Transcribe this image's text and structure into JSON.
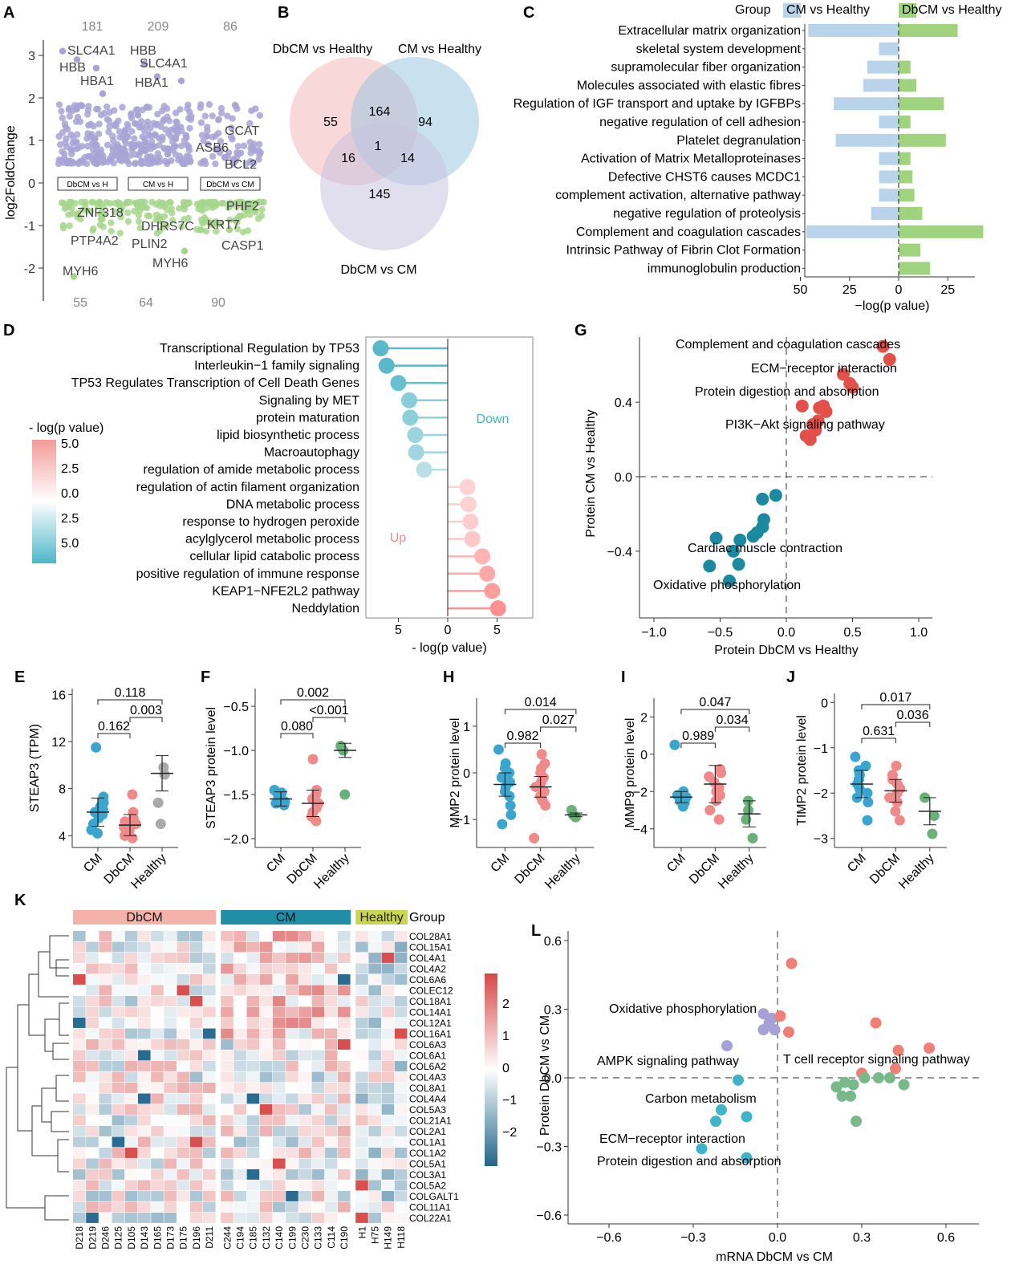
{
  "panels": {
    "A": "A",
    "B": "B",
    "C": "C",
    "D": "D",
    "E": "E",
    "F": "F",
    "G": "G",
    "H": "H",
    "I": "I",
    "J": "J",
    "K": "K",
    "L": "L"
  },
  "chart_data": [
    {
      "panel": "A",
      "type": "scatter",
      "ylabel": "log2FoldChange",
      "ylim": [
        -2.5,
        3.3
      ],
      "yticks": [
        3,
        2,
        1,
        0,
        -1,
        -2
      ],
      "up_counts": [
        "181",
        "209",
        "86"
      ],
      "down_counts": [
        "55",
        "64",
        "90"
      ],
      "groups": [
        "DbCM vs H",
        "CM vs H",
        "DbCM vs CM"
      ],
      "up_color": "#a9a3d6",
      "down_color": "#a6d68c",
      "labels": [
        {
          "text": "SLC4A1",
          "group": 0,
          "y": 3.0
        },
        {
          "text": "HBB",
          "group": 0,
          "y": 2.7
        },
        {
          "text": "HBA1",
          "group": 0,
          "y": 2.4
        },
        {
          "text": "HBB",
          "group": 1,
          "y": 3.0
        },
        {
          "text": "SLC4A1",
          "group": 1,
          "y": 2.8
        },
        {
          "text": "HBA1",
          "group": 1,
          "y": 2.4
        },
        {
          "text": "GCAT",
          "group": 2,
          "y": 1.2
        },
        {
          "text": "ASB6",
          "group": 2,
          "y": 0.8
        },
        {
          "text": "BCL2",
          "group": 2,
          "y": 0.4
        },
        {
          "text": "ZNF318",
          "group": 0,
          "y": -0.7
        },
        {
          "text": "PTP4A2",
          "group": 0,
          "y": -1.3
        },
        {
          "text": "MYH6",
          "group": 0,
          "y": -2.0
        },
        {
          "text": "DHRS7C",
          "group": 1,
          "y": -1.0
        },
        {
          "text": "PLIN2",
          "group": 1,
          "y": -1.4
        },
        {
          "text": "MYH6",
          "group": 1,
          "y": -1.8
        },
        {
          "text": "PHF2",
          "group": 2,
          "y": -0.6
        },
        {
          "text": "KRT7",
          "group": 2,
          "y": -1.0
        },
        {
          "text": "CASP1",
          "group": 2,
          "y": -1.4
        }
      ]
    },
    {
      "panel": "B",
      "type": "venn",
      "sets": [
        "DbCM vs Healthy",
        "CM vs Healthy",
        "DbCM vs CM"
      ],
      "colors": [
        "#f2b8b8",
        "#9dc6e2",
        "#c8c2e0"
      ],
      "regions": {
        "a_only": "55",
        "ab": "164",
        "b_only": "94",
        "abc": "1",
        "ac": "16",
        "bc": "14",
        "c_only": "145"
      }
    },
    {
      "panel": "C",
      "type": "bar",
      "legend_title": "Group",
      "series": [
        {
          "name": "CM vs Healthy",
          "color": "#b9d3ea",
          "values": [
            46,
            10,
            16,
            18,
            33,
            10,
            32,
            10,
            10,
            10,
            14,
            47,
            0,
            0
          ]
        },
        {
          "name": "DbCM vs Healthy",
          "color": "#9fd37d",
          "values": [
            30,
            0,
            6,
            9,
            23,
            6,
            24,
            6,
            7,
            8,
            12,
            43,
            11,
            16
          ]
        }
      ],
      "categories": [
        "Extracellular matrix organization",
        "skeletal system development",
        "supramolecular fiber organization",
        "Molecules associated with elastic fibres",
        "Regulation of IGF transport and uptake by IGFBPs",
        "negative regulation of cell adhesion",
        "Platelet degranulation",
        "Activation of Matrix Metalloproteinases",
        "Defective CHST6 causes MCDC1",
        "complement activation, alternative pathway",
        "negative regulation of proteolysis",
        "Complement and coagulation cascades",
        "Intrinsic Pathway of Fibrin Clot Formation",
        "immunoglobulin production"
      ],
      "xlabel": "−log(p value)",
      "xticks": [
        "50",
        "25",
        "0",
        "25"
      ]
    },
    {
      "panel": "D",
      "type": "lollipop",
      "categories": [
        "Transcriptional Regulation by TP53",
        "Interleukin−1 family signaling",
        "TP53 Regulates Transcription of Cell Death Genes",
        "Signaling by MET",
        "protein maturation",
        "lipid biosynthetic process",
        "Macroautophagy",
        "regulation of amide metabolic process",
        "regulation of actin filament organization",
        "DNA metabolic process",
        "response to hydrogen peroxide",
        "acylglycerol metabolic process",
        "cellular lipid catabolic process",
        "positive regulation of immune response",
        "KEAP1−NFE2L2 pathway",
        "Neddylation"
      ],
      "values": [
        -6.8,
        -6.2,
        -5.0,
        -3.9,
        -3.8,
        -3.3,
        -3.2,
        -2.4,
        2.0,
        2.1,
        2.3,
        2.5,
        3.5,
        4.0,
        4.5,
        5.1
      ],
      "xlabel": "- log(p value)",
      "xticks": [
        "5",
        "0",
        "5"
      ],
      "legend_title": "- log(p value)",
      "legend_ticks": [
        "5.0",
        "2.5",
        "0.0",
        "2.5",
        "5.0"
      ],
      "down_label": "Down",
      "up_label": "Up"
    },
    {
      "panel": "G",
      "type": "scatter",
      "xlabel": "Protein DbCM vs Healthy",
      "ylabel": "Protein CM vs Healthy",
      "xlim": [
        -1.1,
        1.1
      ],
      "ylim": [
        -0.6,
        0.8
      ],
      "xticks": [
        "−1.0",
        "−0.5",
        "0.0",
        "0.5",
        "1.0"
      ],
      "yticks": [
        "0.4",
        "0.0",
        "−0.4"
      ],
      "up_color": "#e2504a",
      "down_color": "#1b8aa0",
      "up_points": [
        [
          0.73,
          0.7
        ],
        [
          0.78,
          0.63
        ],
        [
          0.43,
          0.55
        ],
        [
          0.48,
          0.5
        ],
        [
          0.5,
          0.48
        ],
        [
          0.28,
          0.38
        ],
        [
          0.25,
          0.37
        ],
        [
          0.3,
          0.35
        ],
        [
          0.12,
          0.38
        ],
        [
          0.24,
          0.3
        ],
        [
          0.2,
          0.28
        ],
        [
          0.22,
          0.25
        ],
        [
          0.15,
          0.22
        ],
        [
          0.18,
          0.2
        ]
      ],
      "down_points": [
        [
          -0.18,
          -0.12
        ],
        [
          -0.08,
          -0.1
        ],
        [
          -0.17,
          -0.23
        ],
        [
          -0.18,
          -0.27
        ],
        [
          -0.22,
          -0.3
        ],
        [
          -0.25,
          -0.32
        ],
        [
          -0.35,
          -0.34
        ],
        [
          -0.53,
          -0.33
        ],
        [
          -0.4,
          -0.4
        ],
        [
          -0.58,
          -0.48
        ],
        [
          -0.36,
          -0.47
        ],
        [
          -0.43,
          -0.56
        ]
      ],
      "annotations": [
        {
          "text": "Complement and coagulation cascades",
          "x": 0.55,
          "y": 0.7
        },
        {
          "text": "ECM−receptor interaction",
          "x": 0.45,
          "y": 0.57
        },
        {
          "text": "Protein digestion and absorption",
          "x": 0.4,
          "y": 0.44
        },
        {
          "text": "PI3K−Akt signaling pathway",
          "x": 0.35,
          "y": 0.27
        },
        {
          "text": "Cardiac muscle contraction",
          "x": -0.1,
          "y": -0.4
        },
        {
          "text": "Oxidative phosphorylation",
          "x": -0.4,
          "y": -0.6
        }
      ]
    },
    {
      "panel": "E",
      "type": "scatter",
      "ylabel": "STEAP3 (TPM)",
      "ylim": [
        3,
        16.5
      ],
      "yticks": [
        "16",
        "12",
        "8",
        "4"
      ],
      "groups": [
        "CM",
        "DbCM",
        "Healthy"
      ],
      "colors": [
        "#3aa6cf",
        "#ef8a8a",
        "#a9a9a9"
      ],
      "means": [
        6.0,
        4.9,
        9.3
      ],
      "sd": [
        1.2,
        0.9,
        1.5
      ],
      "points": [
        [
          4.5,
          5,
          5.5,
          5.8,
          6,
          6.2,
          6.5,
          7,
          7.3,
          4.2,
          11.5,
          6.8
        ],
        [
          4,
          4.5,
          4.8,
          5,
          5.2,
          5.5,
          4.3,
          3.8,
          6,
          7.5,
          5,
          4.7
        ],
        [
          9.8,
          9.2,
          6.8,
          5
        ]
      ],
      "pvalues": [
        "0.118",
        "0.003",
        "0.162"
      ]
    },
    {
      "panel": "F",
      "type": "scatter",
      "ylabel": "STEAP3 protein level",
      "ylim": [
        -2.1,
        -0.3
      ],
      "yticks": [
        "−0.5",
        "−1.0",
        "−1.5",
        "−2.0"
      ],
      "groups": [
        "CM",
        "DbCM",
        "Healthy"
      ],
      "colors": [
        "#3aa6cf",
        "#ef8a8a",
        "#6ab07a"
      ],
      "means": [
        -1.55,
        -1.6,
        -1.0
      ],
      "sd": [
        0.08,
        0.15,
        0.08
      ],
      "points": [
        [
          -1.45,
          -1.5,
          -1.52,
          -1.55,
          -1.58,
          -1.6,
          -1.62,
          -1.48,
          -1.57,
          -1.53
        ],
        [
          -1.5,
          -1.55,
          -1.6,
          -1.7,
          -1.75,
          -1.1,
          -1.45,
          -1.65,
          -1.58,
          -1.8
        ],
        [
          -0.95,
          -1.0,
          -1.5
        ]
      ],
      "pvalues": [
        "0.002",
        "<0.001",
        "0.080"
      ]
    },
    {
      "panel": "H",
      "type": "scatter",
      "ylabel": "MMP2 protein level",
      "ylim": [
        -1.6,
        1.6
      ],
      "yticks": [
        "1",
        "0",
        "−1"
      ],
      "groups": [
        "CM",
        "DbCM",
        "Healthy"
      ],
      "colors": [
        "#3aa6cf",
        "#ef8a8a",
        "#6ab07a"
      ],
      "means": [
        -0.25,
        -0.3,
        -0.9
      ],
      "sd": [
        0.25,
        0.22,
        0.04
      ],
      "points": [
        [
          0.5,
          0.2,
          0,
          -0.1,
          -0.2,
          -0.3,
          -0.5,
          -0.7,
          -0.9,
          -1.1,
          0.1,
          -0.4
        ],
        [
          0.4,
          0.1,
          0,
          -0.2,
          -0.3,
          -0.4,
          -0.5,
          -0.7,
          -1.4,
          -0.1,
          -0.6,
          0.2
        ],
        [
          -0.8,
          -0.9,
          -0.95
        ]
      ],
      "pvalues": [
        "0.014",
        "0.027",
        "0.982"
      ]
    },
    {
      "panel": "I",
      "type": "scatter",
      "ylabel": "MMP9 protein level",
      "ylim": [
        -5,
        3
      ],
      "yticks": [
        "2",
        "0",
        "−2",
        "−4"
      ],
      "groups": [
        "CM",
        "DbCM",
        "Healthy"
      ],
      "colors": [
        "#3aa6cf",
        "#ef8a8a",
        "#6ab07a"
      ],
      "means": [
        -2.3,
        -1.6,
        -3.2
      ],
      "sd": [
        0.3,
        1.0,
        0.7
      ],
      "points": [
        [
          0.5,
          -2,
          -2.2,
          -2.4,
          -2.5,
          -2.6,
          -2.3,
          -2.1,
          -2.8,
          -2.2
        ],
        [
          -0.8,
          -1.2,
          -1.5,
          -2,
          -2.5,
          -3,
          -3.5,
          -1.8,
          -2.2,
          -1
        ],
        [
          -2.5,
          -3,
          -3.5,
          -4.5
        ]
      ],
      "pvalues": [
        "0.047",
        "0.034",
        "0.989"
      ]
    },
    {
      "panel": "J",
      "type": "scatter",
      "ylabel": "TIMP2 protein level",
      "ylim": [
        -3.2,
        0.2
      ],
      "yticks": [
        "0",
        "−1",
        "−2",
        "−3"
      ],
      "groups": [
        "CM",
        "DbCM",
        "Healthy"
      ],
      "colors": [
        "#3aa6cf",
        "#ef8a8a",
        "#6ab07a"
      ],
      "means": [
        -1.8,
        -1.95,
        -2.4
      ],
      "sd": [
        0.3,
        0.25,
        0.3
      ],
      "points": [
        [
          -1.2,
          -1.4,
          -1.6,
          -1.8,
          -2,
          -2.2,
          -2.6,
          -1.7,
          -1.9,
          -2.1,
          -1.5
        ],
        [
          -1.4,
          -1.6,
          -1.8,
          -2,
          -2.2,
          -2.4,
          -2.6,
          -1.7,
          -2.1,
          -1.9
        ],
        [
          -2.1,
          -2.5,
          -2.9
        ]
      ],
      "pvalues": [
        "0.017",
        "0.036",
        "0.631"
      ]
    },
    {
      "panel": "K",
      "type": "heatmap",
      "group_label": "Group",
      "groups": [
        {
          "name": "DbCM",
          "count": 11,
          "color": "#f5b2aa"
        },
        {
          "name": "CM",
          "count": 10,
          "color": "#1f8ea6"
        },
        {
          "name": "Healthy",
          "count": 4,
          "color": "#c9d64f"
        }
      ],
      "columns": [
        "D218",
        "D219",
        "D246",
        "D125",
        "D105",
        "D143",
        "D165",
        "D173",
        "D175",
        "D196",
        "D211",
        "C244",
        "C194",
        "C185",
        "C132",
        "C140",
        "C199",
        "C230",
        "C133",
        "C114",
        "C190",
        "H1",
        "H75",
        "H149",
        "H118"
      ],
      "rows": [
        "COL28A1",
        "COL15A1",
        "COL4A1",
        "COL4A2",
        "COL6A6",
        "COLEC12",
        "COL18A1",
        "COL14A1",
        "COL12A1",
        "COL16A1",
        "COL6A3",
        "COL6A1",
        "COL6A2",
        "COL4A3",
        "COL8A1",
        "COL4A4",
        "COL5A3",
        "COL21A1",
        "COL2A1",
        "COL1A1",
        "COL1A2",
        "COL5A1",
        "COL3A1",
        "COL5A2",
        "COLGALT1",
        "COL11A1",
        "COL22A1"
      ],
      "scale_ticks": [
        "2",
        "1",
        "0",
        "−1",
        "−2"
      ],
      "seed": 7
    },
    {
      "panel": "L",
      "type": "scatter",
      "xlabel": "mRNA DbCM vs CM",
      "ylabel": "Protein DbCM vs CM",
      "xlim": [
        -0.7,
        0.7
      ],
      "ylim": [
        -0.65,
        0.68
      ],
      "xticks": [
        "−0.6",
        "−0.3",
        "0.0",
        "0.3",
        "0.6"
      ],
      "yticks": [
        "0.6",
        "0.3",
        "0.0",
        "−0.3",
        "−0.6"
      ],
      "series": [
        {
          "color": "#a7a0d6",
          "points": [
            [
              -0.05,
              0.28
            ],
            [
              -0.02,
              0.26
            ],
            [
              -0.05,
              0.21
            ],
            [
              -0.01,
              0.21
            ],
            [
              -0.03,
              0.24
            ],
            [
              -0.18,
              0.14
            ]
          ]
        },
        {
          "color": "#f07f78",
          "points": [
            [
              0.05,
              0.5
            ],
            [
              0.01,
              0.27
            ],
            [
              0.04,
              0.2
            ],
            [
              0.35,
              0.24
            ],
            [
              0.54,
              0.13
            ],
            [
              0.3,
              0.02
            ],
            [
              0.43,
              0.12
            ],
            [
              0.42,
              0.04
            ]
          ]
        },
        {
          "color": "#3fb4c9",
          "points": [
            [
              -0.14,
              -0.01
            ],
            [
              -0.2,
              -0.14
            ],
            [
              -0.22,
              -0.19
            ],
            [
              -0.11,
              -0.17
            ],
            [
              -0.27,
              -0.31
            ],
            [
              -0.11,
              -0.35
            ]
          ]
        },
        {
          "color": "#78b98a",
          "points": [
            [
              0.21,
              -0.04
            ],
            [
              0.24,
              -0.02
            ],
            [
              0.23,
              -0.08
            ],
            [
              0.27,
              -0.03
            ],
            [
              0.31,
              0.0
            ],
            [
              0.36,
              0.0
            ],
            [
              0.4,
              0.0
            ],
            [
              0.45,
              -0.03
            ],
            [
              0.28,
              -0.19
            ],
            [
              0.26,
              -0.08
            ]
          ]
        }
      ],
      "annotations": [
        {
          "text": "Oxidative phosphorylation"
        },
        {
          "text": "AMPK signaling pathway"
        },
        {
          "text": "T cell receptor signaling pathway"
        },
        {
          "text": "Carbon metabolism"
        },
        {
          "text": "ECM−receptor interaction"
        },
        {
          "text": "Protein digestion and absorption"
        }
      ]
    }
  ]
}
